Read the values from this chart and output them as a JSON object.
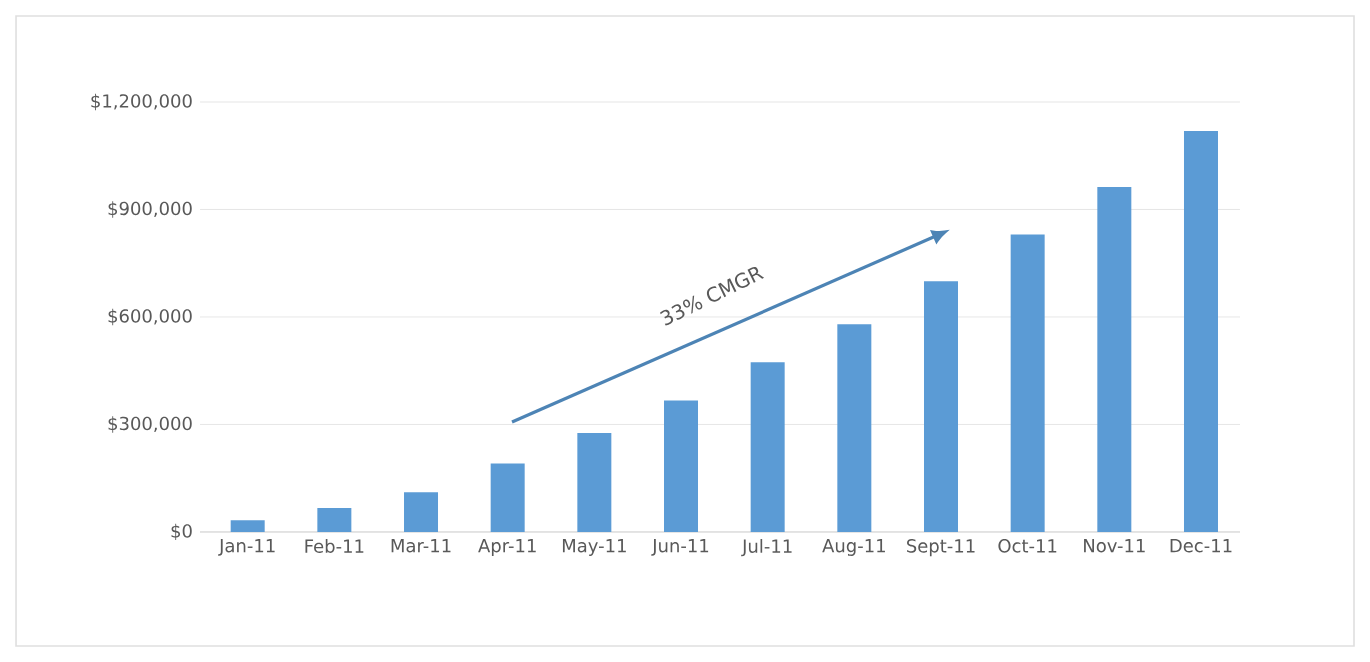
{
  "chart_data": {
    "type": "bar",
    "categories": [
      "Jan-11",
      "Feb-11",
      "Mar-11",
      "Apr-11",
      "May-11",
      "Jun-11",
      "Jul-11",
      "Aug-11",
      "Sept-11",
      "Oct-11",
      "Nov-11",
      "Dec-11"
    ],
    "values": [
      33000,
      67000,
      111000,
      191000,
      276000,
      367000,
      474000,
      580000,
      700000,
      830000,
      963000,
      1119000
    ],
    "color": "#5b9bd5",
    "ylim": [
      0,
      1200000
    ],
    "yticks": [
      {
        "value": 0,
        "label": "$0"
      },
      {
        "value": 300000,
        "label": "$300,000"
      },
      {
        "value": 600000,
        "label": "$600,000"
      },
      {
        "value": 900000,
        "label": "$900,000"
      },
      {
        "value": 1200000,
        "label": "$1,200,000"
      }
    ],
    "grid": "y",
    "annotations": [
      "33% CMGR"
    ]
  }
}
